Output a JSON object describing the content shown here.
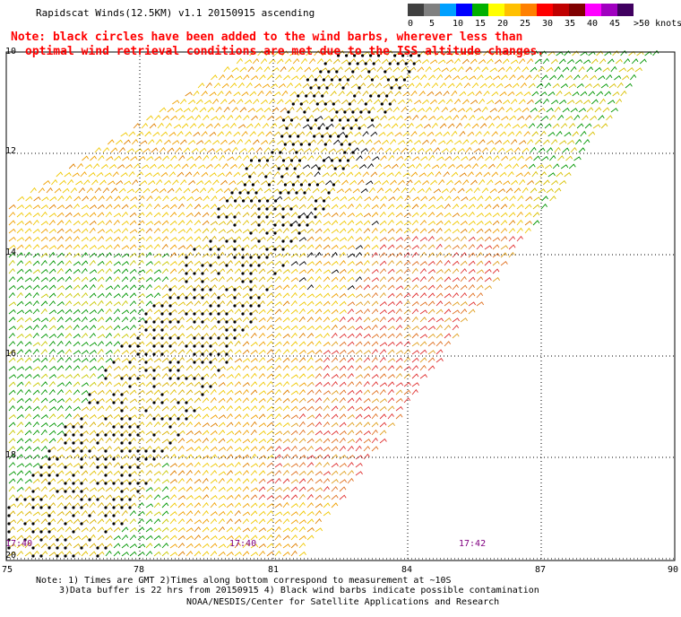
{
  "header": {
    "title": "Rapidscat Winds(12.5KM) v1.1 20150915 ascending"
  },
  "note": {
    "line1": "Note: black circles have been added to the wind barbs, wherever less than",
    "line2": "optimal wind retrieval conditions are met due to the ISS altitude changes."
  },
  "colorbar": {
    "colors": [
      "#404040",
      "#808080",
      "#00a0ff",
      "#0000ff",
      "#00b000",
      "#ffff00",
      "#ffc000",
      "#ff8000",
      "#ff0000",
      "#c00000",
      "#800000",
      "#ff00ff",
      "#a000c0",
      "#400060"
    ],
    "labels": [
      "0",
      "5",
      "10",
      "15",
      "20",
      "25",
      "30",
      "35",
      "40",
      "45",
      ">50 knots"
    ]
  },
  "axes": {
    "lat_labels": [
      "10",
      "12",
      "14",
      "16",
      "18",
      "20"
    ],
    "lon_labels": [
      "75",
      "78",
      "81",
      "84",
      "87",
      "90"
    ],
    "time_labels": [
      "17:40",
      "17:40",
      "17:42"
    ]
  },
  "footer": {
    "line1": "Note: 1) Times are GMT 2)Times along bottom correspond to measurement at ~10S",
    "line2": "3)Data buffer is 22 hrs from 20150915 4) Black wind barbs indicate possible contamination",
    "line3": "NOAA/NESDIS/Center for Satellite Applications and Research"
  }
}
